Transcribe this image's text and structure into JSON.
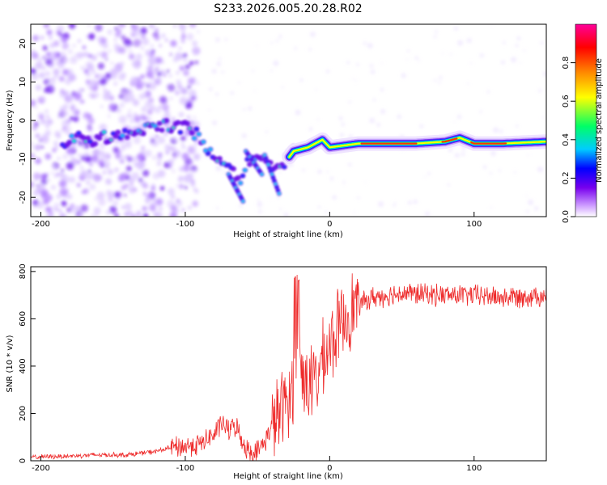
{
  "figure_title": "S233.2026.005.20.28.R02",
  "colors": {
    "line": "#ee2a2a",
    "frame": "#000000"
  },
  "chart_data": [
    {
      "type": "heatmap",
      "title": "S233.2026.005.20.28.R02",
      "xlabel": "Height of straight line (km)",
      "ylabel": "Frequency (Hz)",
      "xlim": [
        -207,
        150
      ],
      "ylim": [
        -25,
        25
      ],
      "xticks": [
        -200,
        -100,
        0,
        100
      ],
      "yticks": [
        -20,
        -10,
        0,
        10,
        20
      ],
      "colorbar": {
        "label": "Normalized spectral amplitude",
        "range": [
          0.0,
          1.0
        ],
        "ticks": [
          0.0,
          0.2,
          0.4,
          0.6,
          0.8
        ],
        "colormap": [
          "#ffffff",
          "#cc99ff",
          "#7700ee",
          "#0000ff",
          "#00ccff",
          "#00ff66",
          "#ffff00",
          "#ff8800",
          "#ff0000",
          "#ff0099"
        ]
      },
      "ridge": {
        "description": "doppler frequency ridge vs height",
        "points": [
          [
            -180,
            -4
          ],
          [
            -165,
            -5
          ],
          [
            -150,
            -4
          ],
          [
            -130,
            -2
          ],
          [
            -115,
            -1
          ],
          [
            -100,
            -2
          ],
          [
            -90,
            -4
          ],
          [
            -80,
            -10
          ],
          [
            -70,
            -12
          ],
          [
            -62,
            -15
          ],
          [
            -55,
            -10
          ],
          [
            -45,
            -10
          ],
          [
            -35,
            -13
          ],
          [
            -25,
            -8
          ],
          [
            -15,
            -7
          ],
          [
            -5,
            -5
          ],
          [
            0,
            -7
          ],
          [
            20,
            -6
          ],
          [
            40,
            -6
          ],
          [
            60,
            -6
          ],
          [
            80,
            -5.5
          ],
          [
            90,
            -4.5
          ],
          [
            100,
            -6
          ],
          [
            120,
            -6
          ],
          [
            150,
            -5.5
          ]
        ]
      }
    },
    {
      "type": "line",
      "xlabel": "Height of straight line (km)",
      "ylabel": "SNR (10 * v/v)",
      "xlim": [
        -207,
        150
      ],
      "ylim": [
        0,
        820
      ],
      "xticks": [
        -200,
        -100,
        0,
        100
      ],
      "yticks": [
        0,
        200,
        400,
        600,
        800
      ],
      "series": [
        {
          "name": "SNR",
          "x": [
            -207,
            -180,
            -160,
            -140,
            -120,
            -110,
            -100,
            -90,
            -80,
            -75,
            -70,
            -65,
            -60,
            -55,
            -50,
            -45,
            -40,
            -35,
            -30,
            -25,
            -22,
            -20,
            -15,
            -10,
            -5,
            0,
            5,
            10,
            15,
            20,
            30,
            40,
            50,
            60,
            80,
            100,
            120,
            150
          ],
          "y": [
            15,
            20,
            25,
            25,
            40,
            55,
            60,
            70,
            110,
            160,
            130,
            150,
            75,
            35,
            40,
            80,
            150,
            200,
            250,
            320,
            560,
            380,
            330,
            330,
            420,
            480,
            550,
            600,
            640,
            660,
            690,
            700,
            710,
            705,
            700,
            700,
            690,
            700
          ]
        }
      ]
    }
  ]
}
